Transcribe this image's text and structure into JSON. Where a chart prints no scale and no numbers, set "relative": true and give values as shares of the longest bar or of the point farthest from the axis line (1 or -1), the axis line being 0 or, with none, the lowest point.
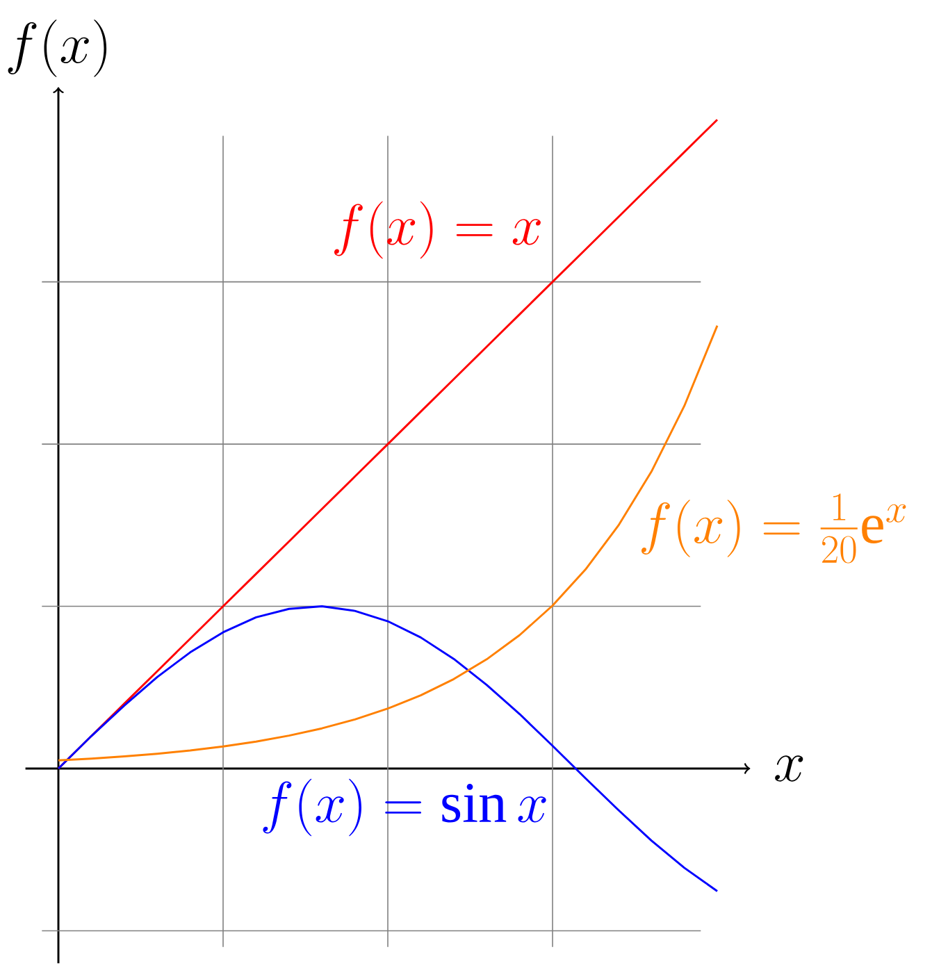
{
  "chart_data": {
    "type": "line",
    "relative": true,
    "xlabel": "x",
    "ylabel": "f(x)",
    "categories": [
      null,
      null,
      null,
      null,
      null,
      null,
      null,
      null,
      null,
      null,
      null,
      null,
      null,
      null,
      null,
      null,
      null,
      null,
      null,
      null,
      null
    ],
    "series": [
      {
        "color": "#ff0000",
        "values": [
          0,
          0.05,
          0.1,
          0.15,
          0.2,
          0.25,
          0.3,
          0.35,
          0.4,
          0.45,
          0.5,
          0.55,
          0.6,
          0.65,
          0.7,
          0.75,
          0.8,
          0.85,
          0.9,
          0.95,
          1.0
        ]
      },
      {
        "color": "#0000ff",
        "values": [
          0,
          0.05,
          0.097,
          0.141,
          0.179,
          0.21,
          0.233,
          0.246,
          0.25,
          0.243,
          0.227,
          0.202,
          0.169,
          0.129,
          0.084,
          0.035,
          -0.015,
          -0.064,
          -0.111,
          -0.153,
          -0.189
        ]
      },
      {
        "color": "#ff8000",
        "values": [
          0.0125,
          0.0153,
          0.0187,
          0.0228,
          0.0278,
          0.034,
          0.0415,
          0.0507,
          0.0619,
          0.0756,
          0.0924,
          0.1128,
          0.1378,
          0.1683,
          0.2056,
          0.2511,
          0.3067,
          0.3746,
          0.4575,
          0.5588,
          0.6825
        ]
      }
    ],
    "annotations": [
      "f(x) = x",
      "f(x) = \\sin x",
      "f(x) = \\frac{1}{20}\\mathrm{e}^x"
    ],
    "grid": true
  }
}
